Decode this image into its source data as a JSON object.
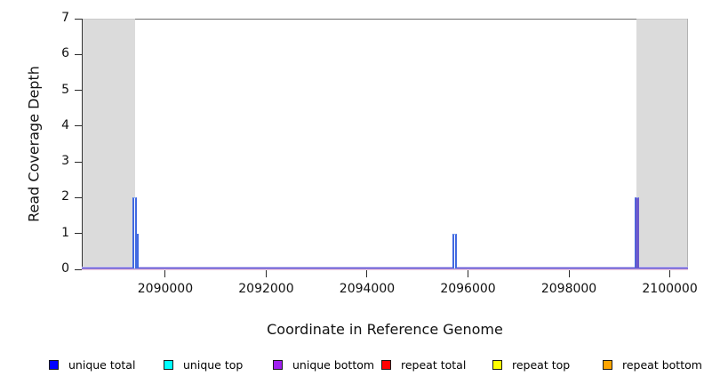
{
  "chart_data": {
    "type": "line",
    "step": true,
    "title": "",
    "xlabel": "Coordinate in Reference Genome",
    "ylabel": "Read Coverage Depth",
    "xlim": [
      2088345,
      2100360
    ],
    "ylim": [
      0,
      7
    ],
    "x_ticks": [
      2090000,
      2092000,
      2094000,
      2096000,
      2098000,
      2100000
    ],
    "y_ticks": [
      0,
      1,
      2,
      3,
      4,
      5,
      6,
      7
    ],
    "grid": false,
    "shaded_regions": [
      {
        "name": "left-gray-region",
        "start": 2088363,
        "end": 2089400,
        "color": "#dbdbdb"
      },
      {
        "name": "right-gray-region",
        "start": 2099340,
        "end": 2100360,
        "color": "#dbdbdb"
      }
    ],
    "baseline": {
      "value": 0,
      "colors": [
        "#c6c1f1",
        "#5f55d6",
        "#edcade"
      ]
    },
    "series": [
      {
        "name": "unique total",
        "color": "#0000ff",
        "line_color": "#4169e1",
        "coverage_segments": [
          {
            "start": 2089350,
            "end": 2089435,
            "depth": 2
          },
          {
            "start": 2089435,
            "end": 2089470,
            "depth": 1
          },
          {
            "start": 2095690,
            "end": 2095780,
            "depth": 1
          },
          {
            "start": 2099310,
            "end": 2099380,
            "depth": 2
          }
        ]
      },
      {
        "name": "unique top",
        "color": "#00ffff",
        "line_color": "#00ced1",
        "coverage_segments": []
      },
      {
        "name": "unique bottom",
        "color": "#a020f0",
        "line_color": "#6a5acd",
        "coverage_segments": [
          {
            "start": 2099318,
            "end": 2099380,
            "depth": 2,
            "fill": "#7b71e3"
          }
        ]
      },
      {
        "name": "repeat total",
        "color": "#ff0000",
        "line_color": "#ff4040",
        "coverage_segments": []
      },
      {
        "name": "repeat top",
        "color": "#ffff00",
        "line_color": "#e6d800",
        "coverage_segments": []
      },
      {
        "name": "repeat bottom",
        "color": "#ffa500",
        "line_color": "#ffa040",
        "coverage_segments": []
      }
    ],
    "baseline_marks": [
      {
        "x": 2089355,
        "color": "#ff8c69"
      },
      {
        "x": 2095700,
        "color": "#ffaebc"
      },
      {
        "x": 2099315,
        "color": "#ffa243"
      }
    ],
    "legend": {
      "position": "bottom",
      "items": [
        {
          "label": "unique total",
          "color": "#0000ff"
        },
        {
          "label": "unique top",
          "color": "#00ffff"
        },
        {
          "label": "unique bottom",
          "color": "#a020f0"
        },
        {
          "label": "repeat total",
          "color": "#ff0000"
        },
        {
          "label": "repeat top",
          "color": "#ffff00"
        },
        {
          "label": "repeat bottom",
          "color": "#ffa500"
        }
      ]
    },
    "style": {
      "box_top_color": "#6e6e6e",
      "box_left_color": "#333333",
      "box_right_color": "#b3b3b3",
      "tick_color": "#2a2a2a",
      "spike_cap_color": "#8fb0ef",
      "spike_fill": "#ffffff",
      "region_top_edge": "#c9c9c9"
    }
  }
}
